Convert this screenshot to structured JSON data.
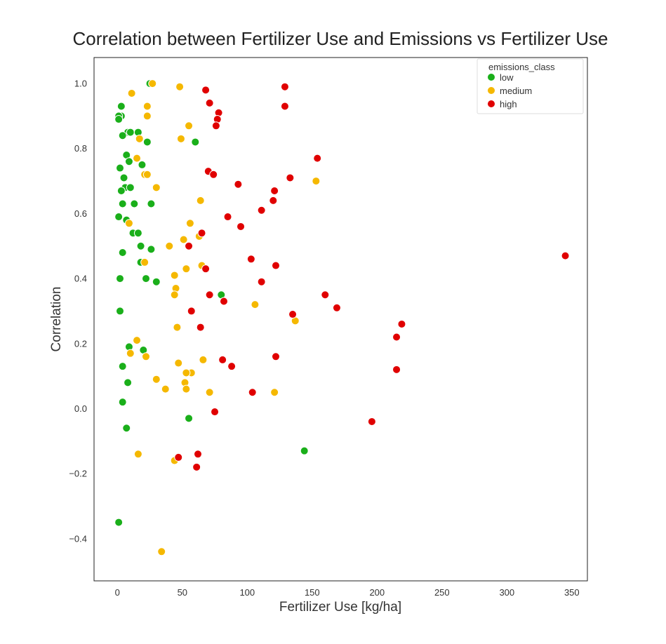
{
  "chart_data": {
    "type": "scatter",
    "title": "Correlation between Fertilizer Use and Emissions vs Fertilizer Use",
    "xlabel": "Fertilizer Use [kg/ha]",
    "ylabel": "Correlation",
    "xlim": [
      -18,
      362
    ],
    "ylim": [
      -0.53,
      1.08
    ],
    "xticks": [
      "0",
      "50",
      "100",
      "150",
      "200",
      "250",
      "300",
      "350"
    ],
    "yticks": [
      "−0.4",
      "−0.2",
      "0.0",
      "0.2",
      "0.4",
      "0.6",
      "0.8",
      "1.0"
    ],
    "xtick_values": [
      0,
      50,
      100,
      150,
      200,
      250,
      300,
      350
    ],
    "ytick_values": [
      -0.4,
      -0.2,
      0.0,
      0.2,
      0.4,
      0.6,
      0.8,
      1.0
    ],
    "grid": false,
    "legend": {
      "title": "emissions_class",
      "placement": "top-right"
    },
    "series": [
      {
        "name": "low",
        "color": "#1aaf1a",
        "points": [
          [
            25,
            1.0
          ],
          [
            3,
            0.93
          ],
          [
            3,
            0.9
          ],
          [
            1,
            0.9
          ],
          [
            1,
            0.89
          ],
          [
            8,
            0.85
          ],
          [
            10,
            0.85
          ],
          [
            16,
            0.85
          ],
          [
            4,
            0.84
          ],
          [
            23,
            0.82
          ],
          [
            60,
            0.82
          ],
          [
            7,
            0.78
          ],
          [
            9,
            0.76
          ],
          [
            19,
            0.75
          ],
          [
            2,
            0.74
          ],
          [
            5,
            0.71
          ],
          [
            6,
            0.68
          ],
          [
            10,
            0.68
          ],
          [
            3,
            0.67
          ],
          [
            4,
            0.63
          ],
          [
            13,
            0.63
          ],
          [
            26,
            0.63
          ],
          [
            1,
            0.59
          ],
          [
            7,
            0.58
          ],
          [
            12,
            0.54
          ],
          [
            16,
            0.54
          ],
          [
            18,
            0.5
          ],
          [
            26,
            0.49
          ],
          [
            4,
            0.48
          ],
          [
            18,
            0.45
          ],
          [
            2,
            0.4
          ],
          [
            22,
            0.4
          ],
          [
            30,
            0.39
          ],
          [
            80,
            0.35
          ],
          [
            2,
            0.3
          ],
          [
            9,
            0.19
          ],
          [
            20,
            0.18
          ],
          [
            4,
            0.13
          ],
          [
            8,
            0.08
          ],
          [
            4,
            0.02
          ],
          [
            55,
            -0.03
          ],
          [
            7,
            -0.06
          ],
          [
            144,
            -0.13
          ],
          [
            1,
            -0.35
          ]
        ]
      },
      {
        "name": "medium",
        "color": "#f5b800",
        "points": [
          [
            27,
            1.0
          ],
          [
            48,
            0.99
          ],
          [
            11,
            0.97
          ],
          [
            23,
            0.93
          ],
          [
            23,
            0.9
          ],
          [
            55,
            0.87
          ],
          [
            49,
            0.83
          ],
          [
            17,
            0.83
          ],
          [
            15,
            0.77
          ],
          [
            21,
            0.72
          ],
          [
            23,
            0.72
          ],
          [
            153,
            0.7
          ],
          [
            30,
            0.68
          ],
          [
            64,
            0.64
          ],
          [
            9,
            0.57
          ],
          [
            56,
            0.57
          ],
          [
            63,
            0.53
          ],
          [
            51,
            0.52
          ],
          [
            40,
            0.5
          ],
          [
            21,
            0.45
          ],
          [
            65,
            0.44
          ],
          [
            53,
            0.43
          ],
          [
            44,
            0.41
          ],
          [
            45,
            0.37
          ],
          [
            44,
            0.35
          ],
          [
            106,
            0.32
          ],
          [
            137,
            0.27
          ],
          [
            46,
            0.25
          ],
          [
            15,
            0.21
          ],
          [
            10,
            0.17
          ],
          [
            22,
            0.16
          ],
          [
            66,
            0.15
          ],
          [
            47,
            0.14
          ],
          [
            57,
            0.11
          ],
          [
            53,
            0.11
          ],
          [
            30,
            0.09
          ],
          [
            52,
            0.08
          ],
          [
            37,
            0.06
          ],
          [
            53,
            0.06
          ],
          [
            71,
            0.05
          ],
          [
            121,
            0.05
          ],
          [
            16,
            -0.14
          ],
          [
            44,
            -0.16
          ],
          [
            34,
            -0.44
          ]
        ]
      },
      {
        "name": "high",
        "color": "#e00000",
        "points": [
          [
            129,
            0.99
          ],
          [
            68,
            0.98
          ],
          [
            71,
            0.94
          ],
          [
            129,
            0.93
          ],
          [
            78,
            0.91
          ],
          [
            77,
            0.89
          ],
          [
            76,
            0.87
          ],
          [
            154,
            0.77
          ],
          [
            70,
            0.73
          ],
          [
            74,
            0.72
          ],
          [
            133,
            0.71
          ],
          [
            93,
            0.69
          ],
          [
            121,
            0.67
          ],
          [
            120,
            0.64
          ],
          [
            111,
            0.61
          ],
          [
            85,
            0.59
          ],
          [
            95,
            0.56
          ],
          [
            65,
            0.54
          ],
          [
            55,
            0.5
          ],
          [
            103,
            0.46
          ],
          [
            345,
            0.47
          ],
          [
            122,
            0.44
          ],
          [
            68,
            0.43
          ],
          [
            111,
            0.39
          ],
          [
            71,
            0.35
          ],
          [
            160,
            0.35
          ],
          [
            82,
            0.33
          ],
          [
            169,
            0.31
          ],
          [
            57,
            0.3
          ],
          [
            135,
            0.29
          ],
          [
            219,
            0.26
          ],
          [
            64,
            0.25
          ],
          [
            215,
            0.22
          ],
          [
            122,
            0.16
          ],
          [
            81,
            0.15
          ],
          [
            88,
            0.13
          ],
          [
            215,
            0.12
          ],
          [
            104,
            0.05
          ],
          [
            75,
            -0.01
          ],
          [
            196,
            -0.04
          ],
          [
            62,
            -0.14
          ],
          [
            47,
            -0.15
          ],
          [
            61,
            -0.18
          ]
        ]
      }
    ]
  }
}
